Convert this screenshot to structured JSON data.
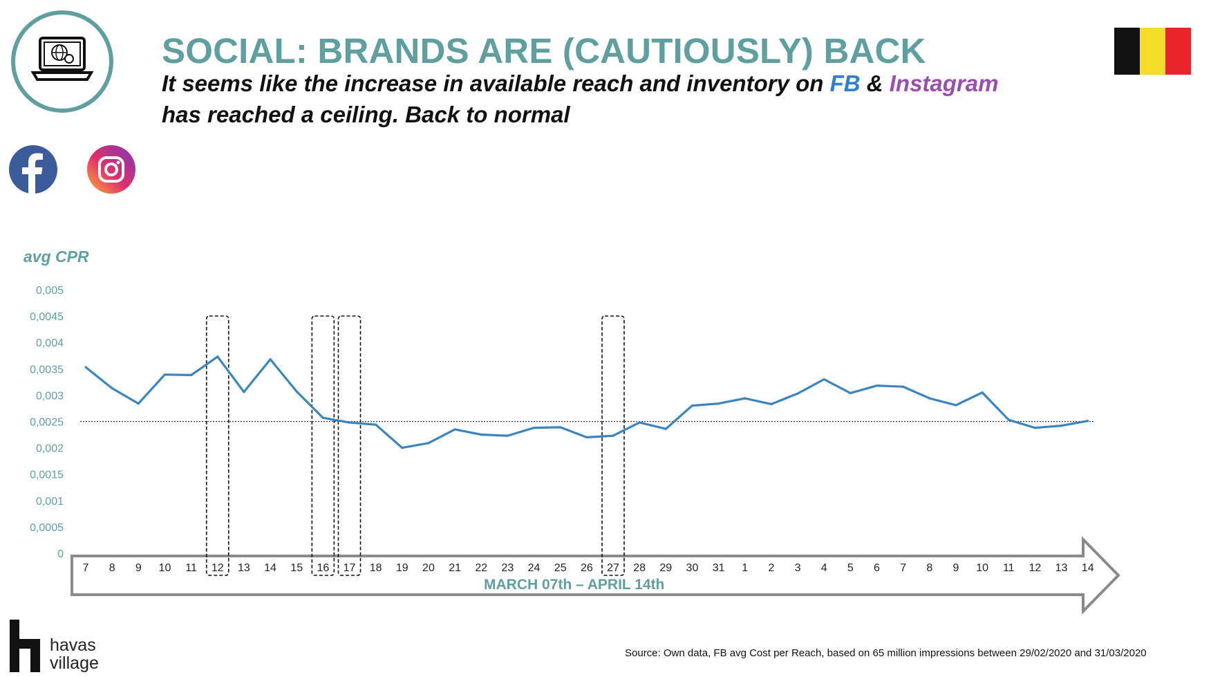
{
  "header": {
    "title": "SOCIAL: BRANDS ARE (CAUTIOUSLY) BACK",
    "subtitle_part1": "It seems like the increase in available reach and inventory on ",
    "subtitle_fb": "FB",
    "subtitle_amp": " & ",
    "subtitle_ig": "Instagram",
    "subtitle_part2": "has reached a ceiling. Back to normal"
  },
  "icons": {
    "badge": "laptop-globe-icon",
    "facebook": "facebook-icon",
    "instagram": "instagram-icon",
    "flag": "belgium-flag-icon"
  },
  "colors": {
    "accent": "#5f9fa0",
    "line": "#3a85c0",
    "facebook": "#2f7fce",
    "instagram": "#9a4fb0",
    "flag": [
      "#111111",
      "#f5dc2b",
      "#e8242c"
    ]
  },
  "chart_data": {
    "type": "line",
    "ylabel": "avg CPR",
    "xlabel": "MARCH 07th – APRIL 14th",
    "ylim": [
      0,
      0.005
    ],
    "yticks": [
      "0,005",
      "0,0045",
      "0,004",
      "0,0035",
      "0,003",
      "0,0025",
      "0,002",
      "0,0015",
      "0,001",
      "0,0005",
      "0"
    ],
    "ytick_values": [
      0.005,
      0.0045,
      0.004,
      0.0035,
      0.003,
      0.0025,
      0.002,
      0.0015,
      0.001,
      0.0005,
      0
    ],
    "categories": [
      "7",
      "8",
      "9",
      "10",
      "11",
      "12",
      "13",
      "14",
      "15",
      "16",
      "17",
      "18",
      "19",
      "20",
      "21",
      "22",
      "23",
      "24",
      "25",
      "26",
      "27",
      "28",
      "29",
      "30",
      "31",
      "1",
      "2",
      "3",
      "4",
      "5",
      "6",
      "7",
      "8",
      "9",
      "10",
      "11",
      "12",
      "13",
      "14"
    ],
    "series": [
      {
        "values": [
          0.00353,
          0.00313,
          0.00284,
          0.00339,
          0.00338,
          0.00373,
          0.00306,
          0.00368,
          0.00307,
          0.00257,
          0.00248,
          0.00244,
          0.002,
          0.00209,
          0.00235,
          0.00225,
          0.00223,
          0.00238,
          0.00239,
          0.0022,
          0.00223,
          0.00248,
          0.00236,
          0.0028,
          0.00284,
          0.00294,
          0.00283,
          0.00303,
          0.0033,
          0.00304,
          0.00318,
          0.00316,
          0.00294,
          0.00281,
          0.00305,
          0.00253,
          0.00238,
          0.00242,
          0.00251
        ]
      }
    ],
    "reference_line": 0.0025,
    "highlighted_categories_index": [
      5,
      9,
      10,
      20
    ]
  },
  "footer": {
    "source": "Source: Own data, FB avg Cost per Reach, based on 65 million impressions between 29/02/2020 and 31/03/2020",
    "logo_line1": "havas",
    "logo_line2": "village"
  }
}
